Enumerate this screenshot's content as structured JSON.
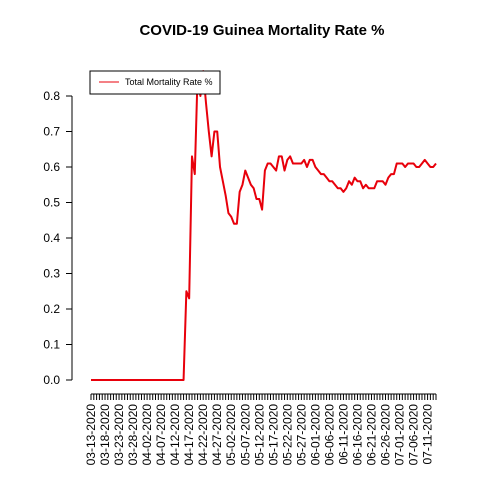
{
  "chart_data": {
    "type": "line",
    "title": "COVID-19 Guinea Mortality Rate %",
    "xlabel": "",
    "ylabel": "",
    "ylim": [
      0,
      0.8
    ],
    "yticks": [
      "0.0",
      "0.1",
      "0.2",
      "0.3",
      "0.4",
      "0.5",
      "0.6",
      "0.7",
      "0.8"
    ],
    "xtick_labels": [
      "03-13-2020",
      "03-18-2020",
      "03-23-2020",
      "03-28-2020",
      "04-02-2020",
      "04-07-2020",
      "04-12-2020",
      "04-17-2020",
      "04-22-2020",
      "04-27-2020",
      "05-02-2020",
      "05-07-2020",
      "05-12-2020",
      "05-17-2020",
      "05-22-2020",
      "05-27-2020",
      "06-01-2020",
      "06-06-2020",
      "06-11-2020",
      "06-16-2020",
      "06-21-2020",
      "06-26-2020",
      "07-01-2020",
      "07-06-2020",
      "07-11-2020"
    ],
    "x_start": "03-13-2020",
    "x_end": "07-15-2020",
    "legend": {
      "position": "top-left",
      "entries": [
        "Total Mortality Rate %"
      ]
    },
    "series": [
      {
        "name": "Total Mortality Rate %",
        "color": "#e8000b",
        "values": [
          0,
          0,
          0,
          0,
          0,
          0,
          0,
          0,
          0,
          0,
          0,
          0,
          0,
          0,
          0,
          0,
          0,
          0,
          0,
          0,
          0,
          0,
          0,
          0,
          0,
          0,
          0,
          0,
          0,
          0,
          0,
          0,
          0,
          0,
          0.25,
          0.23,
          0.63,
          0.58,
          0.86,
          0.8,
          0.87,
          0.78,
          0.7,
          0.63,
          0.7,
          0.7,
          0.6,
          0.56,
          0.52,
          0.47,
          0.46,
          0.44,
          0.44,
          0.53,
          0.55,
          0.59,
          0.57,
          0.55,
          0.54,
          0.51,
          0.51,
          0.48,
          0.59,
          0.61,
          0.61,
          0.6,
          0.59,
          0.63,
          0.63,
          0.59,
          0.62,
          0.63,
          0.61,
          0.61,
          0.61,
          0.61,
          0.62,
          0.6,
          0.62,
          0.62,
          0.6,
          0.59,
          0.58,
          0.58,
          0.57,
          0.56,
          0.56,
          0.55,
          0.54,
          0.54,
          0.53,
          0.54,
          0.56,
          0.55,
          0.57,
          0.56,
          0.56,
          0.54,
          0.55,
          0.54,
          0.54,
          0.54,
          0.56,
          0.56,
          0.56,
          0.55,
          0.57,
          0.58,
          0.58,
          0.61,
          0.61,
          0.61,
          0.6,
          0.61,
          0.61,
          0.61,
          0.6,
          0.6,
          0.61,
          0.62,
          0.61,
          0.6,
          0.6,
          0.61
        ]
      }
    ]
  }
}
